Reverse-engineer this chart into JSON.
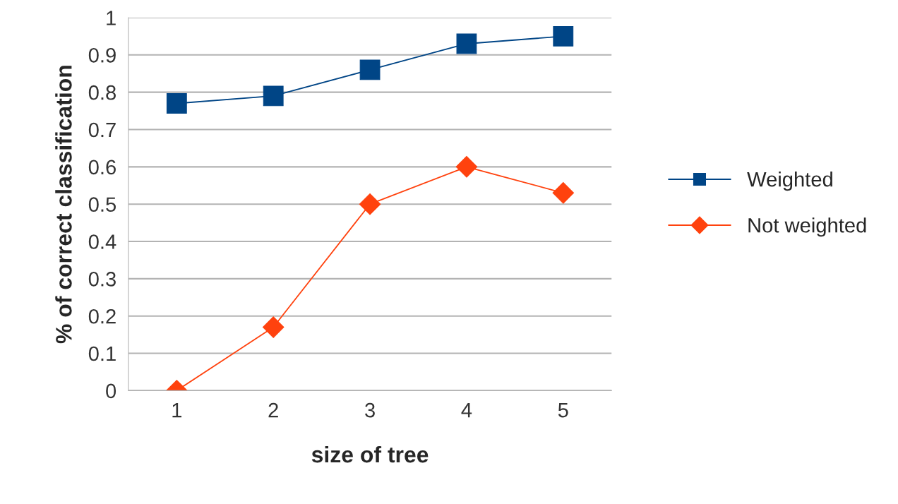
{
  "chart_data": {
    "type": "line",
    "xlabel": "size of tree",
    "ylabel": "% of correct classification",
    "categories": [
      "1",
      "2",
      "3",
      "4",
      "5"
    ],
    "series": [
      {
        "name": "Weighted",
        "color": "#004586",
        "marker": "square",
        "values": [
          0.77,
          0.79,
          0.86,
          0.93,
          0.95
        ]
      },
      {
        "name": "Not weighted",
        "color": "#ff420e",
        "marker": "diamond",
        "values": [
          0,
          0.17,
          0.5,
          0.6,
          0.53
        ]
      }
    ],
    "ylim": [
      0,
      1
    ],
    "yticks": [
      0,
      0.1,
      0.2,
      0.3,
      0.4,
      0.5,
      0.6,
      0.7,
      0.8,
      0.9,
      1
    ],
    "grid": "y",
    "legend": "right",
    "line_style": "solid"
  }
}
